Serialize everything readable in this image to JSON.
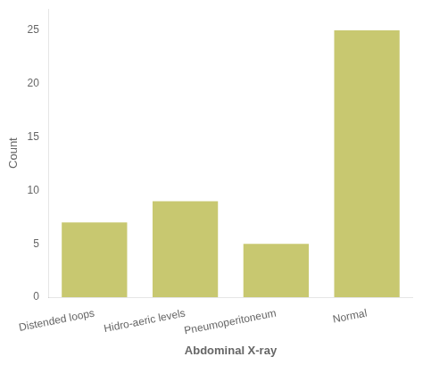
{
  "chart_data": {
    "type": "bar",
    "categories": [
      "Distended loops",
      "Hidro-aeric levels",
      "Pneumoperitoneum",
      "Normal"
    ],
    "values": [
      7,
      9,
      5,
      25
    ],
    "color": "#C8C870",
    "xlabel": "Abdominal X-ray",
    "ylabel": "Count",
    "ylim": [
      0,
      27
    ],
    "yticks": [
      0,
      5,
      10,
      15,
      20,
      25
    ],
    "grid": false
  }
}
